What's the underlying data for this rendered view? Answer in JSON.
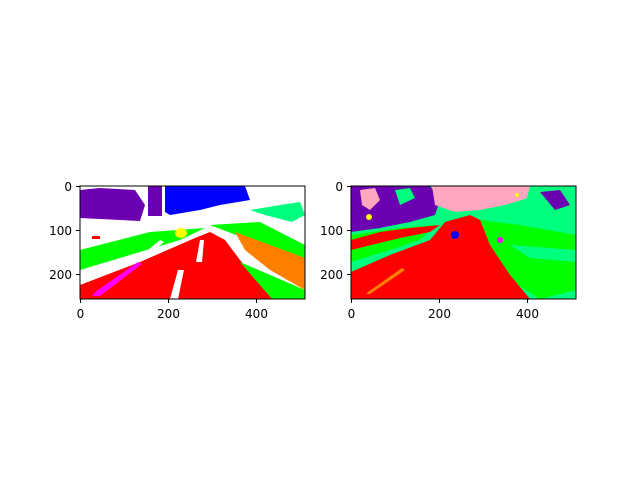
{
  "figure": {
    "panels": [
      {
        "id": "ground-truth-segmentation",
        "x_ticks": [
          "0",
          "200",
          "400"
        ],
        "y_ticks": [
          "0",
          "100",
          "200"
        ]
      },
      {
        "id": "predicted-segmentation",
        "x_ticks": [
          "0",
          "200",
          "400"
        ],
        "y_ticks": [
          "0",
          "100",
          "200"
        ]
      }
    ]
  },
  "colors": {
    "road": "#ff0000",
    "sidewalk": "#ffffff",
    "vegetation": "#00ff00",
    "building": "#6a00b0",
    "sky": "#0000ff",
    "sky_pred": "#ffa6c0",
    "terrain": "#ff7f00",
    "lane_marking": "#ff00ff",
    "sign": "#ffff00",
    "fence": "#00ff7f"
  }
}
